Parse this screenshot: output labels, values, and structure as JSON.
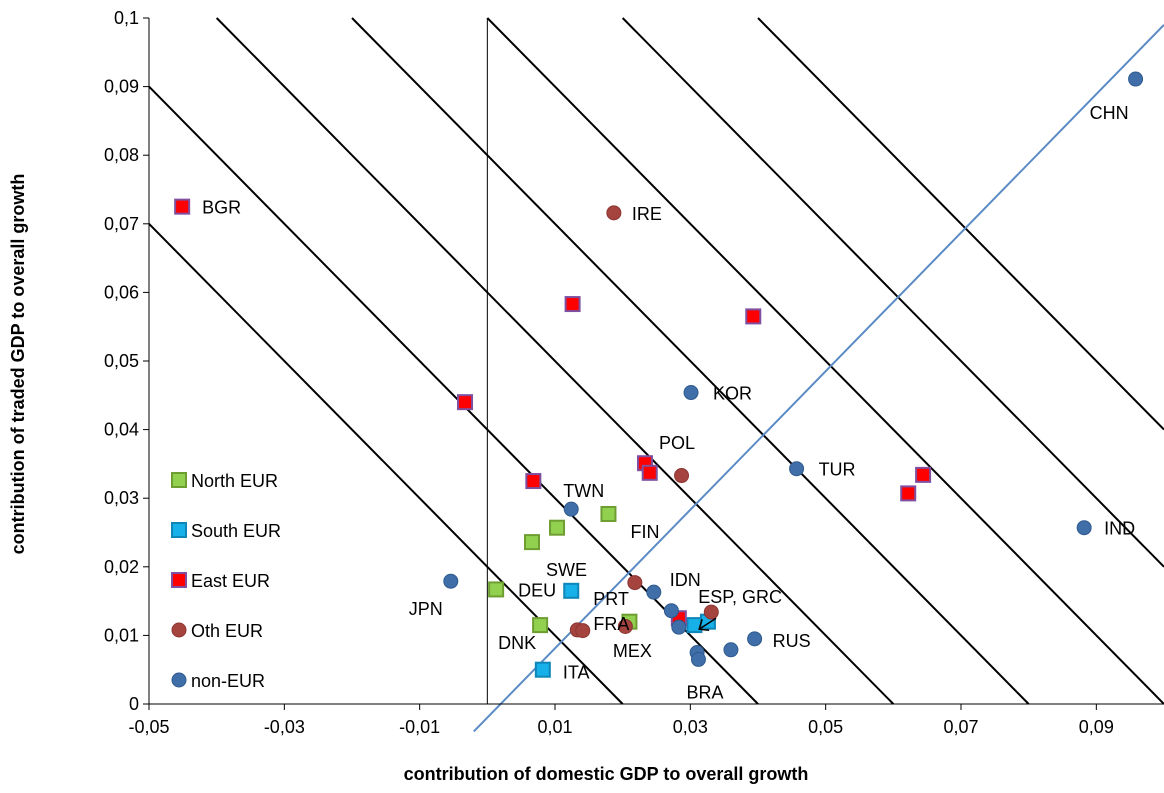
{
  "chart_data": {
    "type": "scatter",
    "xlabel": "contribution  of domestic GDP to overall growth",
    "ylabel": "contribution  of traded GDP to overall growth",
    "xlim": [
      -0.05,
      0.1
    ],
    "ylim": [
      0,
      0.1
    ],
    "x_ticks": [
      "-0,05",
      "-0,03",
      "-0,01",
      "0,01",
      "0,03",
      "0,05",
      "0,07",
      "0,09"
    ],
    "x_tick_values": [
      -0.05,
      -0.03,
      -0.01,
      0.01,
      0.03,
      0.05,
      0.07,
      0.09
    ],
    "y_ticks": [
      "0",
      "0,01",
      "0,02",
      "0,03",
      "0,04",
      "0,05",
      "0,06",
      "0,07",
      "0,08",
      "0,09",
      "0,1"
    ],
    "y_tick_values": [
      0,
      0.01,
      0.02,
      0.03,
      0.04,
      0.05,
      0.06,
      0.07,
      0.08,
      0.09,
      0.1
    ],
    "grid": false,
    "legend_position": "left",
    "diagonal_reference_line": {
      "x1": -0.002,
      "y1": -0.004,
      "x2": 0.1,
      "y2": 0.099,
      "color": "#5B8BC5"
    },
    "iso_growth_lines_sum": [
      0.02,
      0.04,
      0.06,
      0.08,
      0.1,
      0.12,
      0.14
    ],
    "series": [
      {
        "name": "North EUR",
        "marker": "square",
        "color": "#92D050",
        "edge": "#6E9E32",
        "points": [
          {
            "x": 0.0013,
            "y": 0.0167,
            "label": "DEU"
          },
          {
            "x": 0.0078,
            "y": 0.0115,
            "label": "DNK"
          },
          {
            "x": 0.0066,
            "y": 0.0236,
            "label": "SWE"
          },
          {
            "x": 0.0103,
            "y": 0.0257,
            "label": ""
          },
          {
            "x": 0.0179,
            "y": 0.0277,
            "label": "FIN"
          },
          {
            "x": 0.021,
            "y": 0.012,
            "label": ""
          }
        ]
      },
      {
        "name": "South EUR",
        "marker": "square",
        "color": "#17B0E8",
        "edge": "#0E86B8",
        "points": [
          {
            "x": 0.0124,
            "y": 0.0165,
            "label": "PRT"
          },
          {
            "x": 0.0082,
            "y": 0.005,
            "label": "ITA"
          },
          {
            "x": 0.0306,
            "y": 0.0115,
            "label": ""
          },
          {
            "x": 0.0326,
            "y": 0.012,
            "label": ""
          }
        ]
      },
      {
        "name": "East EUR",
        "marker": "square",
        "color": "#FF0000",
        "edge": "#7F4FA0",
        "points": [
          {
            "x": -0.0451,
            "y": 0.0725,
            "label": "BGR"
          },
          {
            "x": -0.0033,
            "y": 0.044,
            "label": ""
          },
          {
            "x": 0.0068,
            "y": 0.0325,
            "label": ""
          },
          {
            "x": 0.0126,
            "y": 0.0583,
            "label": ""
          },
          {
            "x": 0.0233,
            "y": 0.0351,
            "label": "POL"
          },
          {
            "x": 0.024,
            "y": 0.0337,
            "label": ""
          },
          {
            "x": 0.0393,
            "y": 0.0565,
            "label": ""
          },
          {
            "x": 0.0622,
            "y": 0.0307,
            "label": ""
          },
          {
            "x": 0.0644,
            "y": 0.0334,
            "label": ""
          },
          {
            "x": 0.0283,
            "y": 0.0125,
            "label": ""
          }
        ]
      },
      {
        "name": "Oth EUR",
        "marker": "circle",
        "color": "#A5433F",
        "edge": "#8C3532",
        "points": [
          {
            "x": 0.0187,
            "y": 0.0716,
            "label": "IRE"
          },
          {
            "x": 0.0287,
            "y": 0.0333,
            "label": ""
          },
          {
            "x": 0.0218,
            "y": 0.0177,
            "label": ""
          },
          {
            "x": 0.0133,
            "y": 0.0108,
            "label": "FRA"
          },
          {
            "x": 0.0141,
            "y": 0.0107,
            "label": ""
          },
          {
            "x": 0.0204,
            "y": 0.0113,
            "label": ""
          },
          {
            "x": 0.0331,
            "y": 0.0134,
            "label": "ESP, GRC"
          }
        ]
      },
      {
        "name": "non-EUR",
        "marker": "circle",
        "color": "#3F6EA8",
        "edge": "#2F5A8E",
        "points": [
          {
            "x": 0.0958,
            "y": 0.0911,
            "label": "CHN"
          },
          {
            "x": 0.0301,
            "y": 0.0454,
            "label": "KOR"
          },
          {
            "x": 0.0457,
            "y": 0.0343,
            "label": "TUR"
          },
          {
            "x": 0.0882,
            "y": 0.0257,
            "label": "IND"
          },
          {
            "x": 0.0124,
            "y": 0.0284,
            "label": "TWN"
          },
          {
            "x": -0.0054,
            "y": 0.0179,
            "label": "JPN"
          },
          {
            "x": 0.0246,
            "y": 0.0163,
            "label": "IDN"
          },
          {
            "x": 0.0272,
            "y": 0.0136,
            "label": ""
          },
          {
            "x": 0.0283,
            "y": 0.0112,
            "label": "MEX"
          },
          {
            "x": 0.031,
            "y": 0.0075,
            "label": ""
          },
          {
            "x": 0.0312,
            "y": 0.0065,
            "label": "BRA"
          },
          {
            "x": 0.036,
            "y": 0.0079,
            "label": ""
          },
          {
            "x": 0.0395,
            "y": 0.0095,
            "label": "RUS"
          }
        ]
      }
    ]
  }
}
